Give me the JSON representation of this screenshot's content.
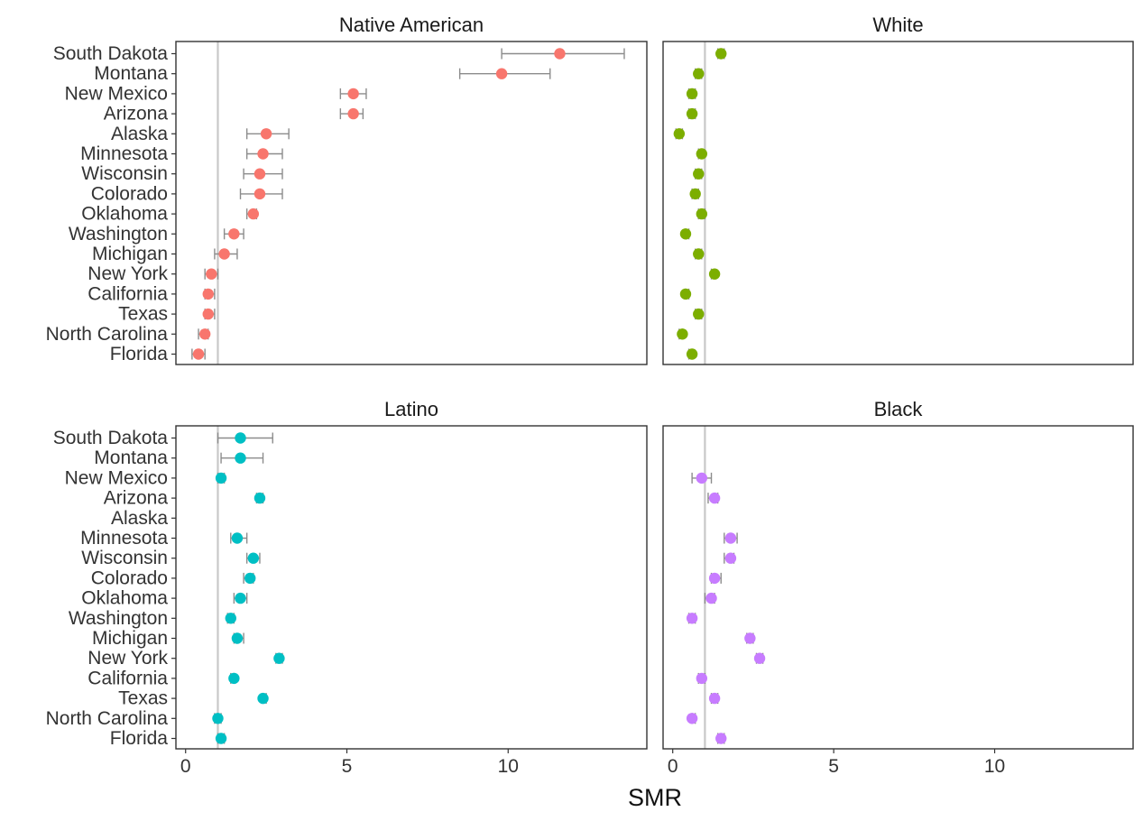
{
  "chart_data": {
    "type": "scatter",
    "xlabel": "SMR",
    "xlim": [
      -0.3,
      14.3
    ],
    "x_ticks": [
      0,
      5,
      10
    ],
    "reference_line": 1,
    "grid": false,
    "legend": "none",
    "categories": [
      "South Dakota",
      "Montana",
      "New Mexico",
      "Arizona",
      "Alaska",
      "Minnesota",
      "Wisconsin",
      "Colorado",
      "Oklahoma",
      "Washington",
      "Michigan",
      "New York",
      "California",
      "Texas",
      "North Carolina",
      "Florida"
    ],
    "panels": [
      {
        "title": "Native American",
        "color": "#F8766D",
        "points": [
          {
            "state": "South Dakota",
            "smr": 11.6,
            "lo": 9.8,
            "hi": 13.6
          },
          {
            "state": "Montana",
            "smr": 9.8,
            "lo": 8.5,
            "hi": 11.3
          },
          {
            "state": "New Mexico",
            "smr": 5.2,
            "lo": 4.8,
            "hi": 5.6
          },
          {
            "state": "Arizona",
            "smr": 5.2,
            "lo": 4.8,
            "hi": 5.5
          },
          {
            "state": "Alaska",
            "smr": 2.5,
            "lo": 1.9,
            "hi": 3.2
          },
          {
            "state": "Minnesota",
            "smr": 2.4,
            "lo": 1.9,
            "hi": 3.0
          },
          {
            "state": "Wisconsin",
            "smr": 2.3,
            "lo": 1.8,
            "hi": 3.0
          },
          {
            "state": "Colorado",
            "smr": 2.3,
            "lo": 1.7,
            "hi": 3.0
          },
          {
            "state": "Oklahoma",
            "smr": 2.1,
            "lo": 1.9,
            "hi": 2.2
          },
          {
            "state": "Washington",
            "smr": 1.5,
            "lo": 1.2,
            "hi": 1.8
          },
          {
            "state": "Michigan",
            "smr": 1.2,
            "lo": 0.9,
            "hi": 1.6
          },
          {
            "state": "New York",
            "smr": 0.8,
            "lo": 0.6,
            "hi": 1.0
          },
          {
            "state": "California",
            "smr": 0.7,
            "lo": 0.6,
            "hi": 0.9
          },
          {
            "state": "Texas",
            "smr": 0.7,
            "lo": 0.6,
            "hi": 0.9
          },
          {
            "state": "North Carolina",
            "smr": 0.6,
            "lo": 0.4,
            "hi": 0.7
          },
          {
            "state": "Florida",
            "smr": 0.4,
            "lo": 0.2,
            "hi": 0.6
          }
        ]
      },
      {
        "title": "White",
        "color": "#7CAE00",
        "points": [
          {
            "state": "South Dakota",
            "smr": 1.5,
            "lo": 1.4,
            "hi": 1.6
          },
          {
            "state": "Montana",
            "smr": 0.8,
            "lo": 0.7,
            "hi": 0.9
          },
          {
            "state": "New Mexico",
            "smr": 0.6,
            "lo": 0.5,
            "hi": 0.7
          },
          {
            "state": "Arizona",
            "smr": 0.6,
            "lo": 0.5,
            "hi": 0.7
          },
          {
            "state": "Alaska",
            "smr": 0.2,
            "lo": 0.1,
            "hi": 0.3
          },
          {
            "state": "Minnesota",
            "smr": 0.9,
            "lo": 0.8,
            "hi": 0.9
          },
          {
            "state": "Wisconsin",
            "smr": 0.8,
            "lo": 0.7,
            "hi": 0.9
          },
          {
            "state": "Colorado",
            "smr": 0.7,
            "lo": 0.6,
            "hi": 0.8
          },
          {
            "state": "Oklahoma",
            "smr": 0.9,
            "lo": 0.8,
            "hi": 1.0
          },
          {
            "state": "Washington",
            "smr": 0.4,
            "lo": 0.4,
            "hi": 0.5
          },
          {
            "state": "Michigan",
            "smr": 0.8,
            "lo": 0.7,
            "hi": 0.9
          },
          {
            "state": "New York",
            "smr": 1.3,
            "lo": 1.2,
            "hi": 1.3
          },
          {
            "state": "California",
            "smr": 0.4,
            "lo": 0.4,
            "hi": 0.5
          },
          {
            "state": "Texas",
            "smr": 0.8,
            "lo": 0.7,
            "hi": 0.9
          },
          {
            "state": "North Carolina",
            "smr": 0.3,
            "lo": 0.2,
            "hi": 0.3
          },
          {
            "state": "Florida",
            "smr": 0.6,
            "lo": 0.5,
            "hi": 0.6
          }
        ]
      },
      {
        "title": "Latino",
        "color": "#00BFC4",
        "points": [
          {
            "state": "South Dakota",
            "smr": 1.7,
            "lo": 1.0,
            "hi": 2.7
          },
          {
            "state": "Montana",
            "smr": 1.7,
            "lo": 1.1,
            "hi": 2.4
          },
          {
            "state": "New Mexico",
            "smr": 1.1,
            "lo": 1.0,
            "hi": 1.2
          },
          {
            "state": "Arizona",
            "smr": 2.3,
            "lo": 2.2,
            "hi": 2.4
          },
          {
            "state": "Alaska",
            "smr": null,
            "lo": null,
            "hi": null
          },
          {
            "state": "Minnesota",
            "smr": 1.6,
            "lo": 1.4,
            "hi": 1.9
          },
          {
            "state": "Wisconsin",
            "smr": 2.1,
            "lo": 1.9,
            "hi": 2.3
          },
          {
            "state": "Colorado",
            "smr": 2.0,
            "lo": 1.8,
            "hi": 2.1
          },
          {
            "state": "Oklahoma",
            "smr": 1.7,
            "lo": 1.5,
            "hi": 1.9
          },
          {
            "state": "Washington",
            "smr": 1.4,
            "lo": 1.3,
            "hi": 1.5
          },
          {
            "state": "Michigan",
            "smr": 1.6,
            "lo": 1.5,
            "hi": 1.8
          },
          {
            "state": "New York",
            "smr": 2.9,
            "lo": 2.8,
            "hi": 3.0
          },
          {
            "state": "California",
            "smr": 1.5,
            "lo": 1.4,
            "hi": 1.5
          },
          {
            "state": "Texas",
            "smr": 2.4,
            "lo": 2.4,
            "hi": 2.5
          },
          {
            "state": "North Carolina",
            "smr": 1.0,
            "lo": 0.9,
            "hi": 1.1
          },
          {
            "state": "Florida",
            "smr": 1.1,
            "lo": 1.0,
            "hi": 1.2
          }
        ]
      },
      {
        "title": "Black",
        "color": "#C77CFF",
        "points": [
          {
            "state": "South Dakota",
            "smr": null,
            "lo": null,
            "hi": null
          },
          {
            "state": "Montana",
            "smr": null,
            "lo": null,
            "hi": null
          },
          {
            "state": "New Mexico",
            "smr": 0.9,
            "lo": 0.6,
            "hi": 1.2
          },
          {
            "state": "Arizona",
            "smr": 1.3,
            "lo": 1.1,
            "hi": 1.4
          },
          {
            "state": "Alaska",
            "smr": null,
            "lo": null,
            "hi": null
          },
          {
            "state": "Minnesota",
            "smr": 1.8,
            "lo": 1.6,
            "hi": 2.0
          },
          {
            "state": "Wisconsin",
            "smr": 1.8,
            "lo": 1.6,
            "hi": 1.9
          },
          {
            "state": "Colorado",
            "smr": 1.3,
            "lo": 1.2,
            "hi": 1.5
          },
          {
            "state": "Oklahoma",
            "smr": 1.2,
            "lo": 1.0,
            "hi": 1.3
          },
          {
            "state": "Washington",
            "smr": 0.6,
            "lo": 0.5,
            "hi": 0.7
          },
          {
            "state": "Michigan",
            "smr": 2.4,
            "lo": 2.3,
            "hi": 2.5
          },
          {
            "state": "New York",
            "smr": 2.7,
            "lo": 2.6,
            "hi": 2.8
          },
          {
            "state": "California",
            "smr": 0.9,
            "lo": 0.8,
            "hi": 1.0
          },
          {
            "state": "Texas",
            "smr": 1.3,
            "lo": 1.2,
            "hi": 1.4
          },
          {
            "state": "North Carolina",
            "smr": 0.6,
            "lo": 0.6,
            "hi": 0.7
          },
          {
            "state": "Florida",
            "smr": 1.5,
            "lo": 1.4,
            "hi": 1.6
          }
        ]
      }
    ]
  }
}
